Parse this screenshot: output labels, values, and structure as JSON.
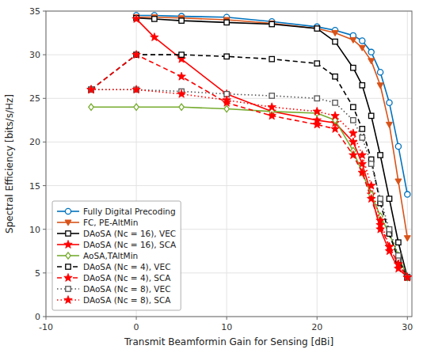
{
  "chart_data": {
    "type": "line",
    "title": "",
    "xlabel": "Transmit Beamformin Gain for Sensing [dBi]",
    "ylabel": "Spectral Efficiency [bits/s/Hz]",
    "xlim": [
      -10,
      30.5
    ],
    "ylim": [
      0,
      35
    ],
    "xticks": [
      -10,
      0,
      10,
      20,
      30
    ],
    "yticks": [
      0,
      5,
      10,
      15,
      20,
      25,
      30,
      35
    ],
    "grid": true,
    "legend": "lower left",
    "series": [
      {
        "name": "Fully Digital Precoding",
        "color": "#0072BD",
        "line_style": "solid",
        "marker": "circle",
        "x": [
          0,
          2,
          5,
          10,
          15,
          20,
          22,
          24,
          25,
          26,
          27,
          28,
          29,
          30
        ],
        "values": [
          34.5,
          34.5,
          34.4,
          34.3,
          33.8,
          33.2,
          32.8,
          32.2,
          31.6,
          30.3,
          28.0,
          24.5,
          19.5,
          14.0
        ]
      },
      {
        "name": "FC, PE-AltMin",
        "color": "#D95319",
        "line_style": "solid",
        "marker": "triangle-down",
        "x": [
          0,
          2,
          5,
          10,
          15,
          20,
          22,
          24,
          25,
          26,
          27,
          28,
          29,
          30
        ],
        "values": [
          34.3,
          34.3,
          34.2,
          34.0,
          33.6,
          33.0,
          32.5,
          31.7,
          30.8,
          29.3,
          26.5,
          22.0,
          15.5,
          9.0
        ]
      },
      {
        "name": "DAoSA (Nc = 16), VEC",
        "color": "#000000",
        "line_style": "solid",
        "marker": "square",
        "x": [
          0,
          2,
          5,
          10,
          15,
          20,
          22,
          24,
          25,
          26,
          27,
          28,
          29,
          30
        ],
        "values": [
          34.2,
          34.1,
          33.9,
          33.7,
          33.5,
          33.0,
          31.5,
          28.5,
          26.5,
          23.0,
          18.5,
          13.5,
          8.5,
          4.5
        ]
      },
      {
        "name": "DAoSA (Nc = 16), SCA",
        "color": "#FF0000",
        "line_style": "solid",
        "marker": "star",
        "x": [
          0,
          2,
          5,
          10,
          15,
          20,
          22,
          24,
          25,
          26,
          27,
          28,
          29,
          30
        ],
        "values": [
          34.1,
          32.0,
          29.5,
          25.5,
          23.5,
          22.5,
          22.2,
          20.0,
          17.5,
          14.0,
          10.0,
          7.5,
          5.5,
          4.5
        ]
      },
      {
        "name": "AoSA,TAltMin",
        "color": "#77AC30",
        "line_style": "solid",
        "marker": "diamond",
        "x": [
          -5,
          0,
          5,
          10,
          15,
          20,
          22,
          24,
          25,
          26,
          27,
          28,
          29,
          30
        ],
        "values": [
          24.0,
          24.0,
          24.0,
          23.8,
          23.5,
          23.3,
          22.5,
          19.0,
          16.5,
          14.0,
          11.5,
          9.5,
          7.0,
          4.5
        ]
      },
      {
        "name": "DAoSA (Nc = 4), VEC",
        "color": "#000000",
        "line_style": "dashed",
        "marker": "square",
        "x": [
          -5,
          0,
          5,
          10,
          15,
          20,
          22,
          24,
          25,
          26,
          27,
          28,
          29,
          30
        ],
        "values": [
          26.0,
          30.0,
          30.0,
          29.8,
          29.5,
          29.0,
          27.5,
          24.0,
          21.5,
          18.0,
          13.0,
          9.5,
          6.5,
          4.5
        ]
      },
      {
        "name": "DAoSA (Nc = 4), SCA",
        "color": "#FF0000",
        "line_style": "dashed",
        "marker": "star",
        "x": [
          -5,
          0,
          5,
          10,
          15,
          20,
          22,
          24,
          25,
          26,
          27,
          28,
          29,
          30
        ],
        "values": [
          26.0,
          30.0,
          27.5,
          24.5,
          23.0,
          22.0,
          21.5,
          18.5,
          16.5,
          13.5,
          10.5,
          8.0,
          6.0,
          4.5
        ]
      },
      {
        "name": "DAoSA (Nc = 8), VEC",
        "color": "#555555",
        "line_style": "dotted",
        "marker": "square",
        "x": [
          -5,
          0,
          5,
          10,
          15,
          20,
          22,
          24,
          25,
          26,
          27,
          28,
          29,
          30
        ],
        "values": [
          26.0,
          26.0,
          25.8,
          25.5,
          25.3,
          25.0,
          24.5,
          22.5,
          20.5,
          17.5,
          13.5,
          10.0,
          7.0,
          4.5
        ]
      },
      {
        "name": "DAoSA (Nc = 8), SCA",
        "color": "#FF0000",
        "line_style": "dotted",
        "marker": "star",
        "x": [
          -5,
          0,
          5,
          10,
          15,
          20,
          22,
          24,
          25,
          26,
          27,
          28,
          29,
          30
        ],
        "values": [
          26.0,
          26.0,
          25.5,
          24.8,
          24.0,
          23.5,
          23.0,
          21.0,
          18.5,
          15.0,
          11.0,
          8.0,
          6.0,
          4.5
        ]
      }
    ]
  }
}
